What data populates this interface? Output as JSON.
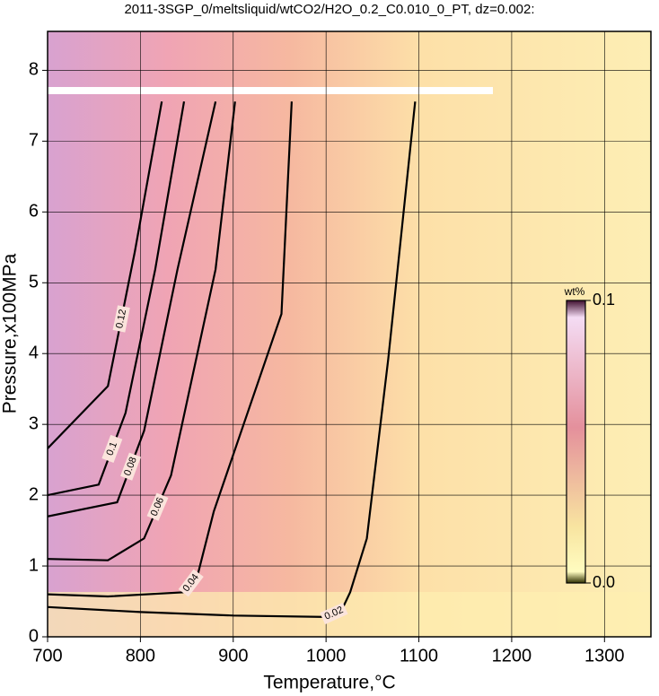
{
  "chart_data": {
    "type": "contour",
    "title": "2011-3SGP_0/meltsliquid/wtCO2/H2O_0.2_C0.010_0_PT, dz=0.002:",
    "xlabel": "Temperature,°C",
    "ylabel": "Pressure,x100MPa",
    "xlim": [
      700,
      1350
    ],
    "ylim": [
      0,
      8.55
    ],
    "xticks": [
      700,
      800,
      900,
      1000,
      1100,
      1200,
      1300
    ],
    "yticks": [
      0,
      1,
      2,
      3,
      4,
      5,
      6,
      7,
      8
    ],
    "grid": true,
    "contours": [
      {
        "level": 0.02,
        "x": [
          700,
          800,
          900,
          1000,
          1017,
          1026,
          1044,
          1067,
          1096
        ],
        "y": [
          0.42,
          0.35,
          0.3,
          0.28,
          0.38,
          0.63,
          1.39,
          3.92,
          7.56
        ]
      },
      {
        "level": 0.04,
        "x": [
          700,
          765,
          847,
          862,
          879,
          952,
          963
        ],
        "y": [
          0.6,
          0.57,
          0.63,
          0.89,
          1.77,
          4.56,
          7.56
        ]
      },
      {
        "level": 0.06,
        "x": [
          700,
          765,
          804,
          833,
          881,
          902
        ],
        "y": [
          1.1,
          1.08,
          1.39,
          2.28,
          5.19,
          7.56
        ]
      },
      {
        "level": 0.08,
        "x": [
          700,
          775,
          804,
          840,
          881
        ],
        "y": [
          1.7,
          1.9,
          2.91,
          5.19,
          7.56
        ]
      },
      {
        "level": 0.1,
        "x": [
          700,
          755,
          784,
          816,
          847
        ],
        "y": [
          2.0,
          2.15,
          3.16,
          5.19,
          7.56
        ]
      },
      {
        "level": 0.12,
        "x": [
          700,
          765,
          794,
          823
        ],
        "y": [
          2.66,
          3.54,
          5.44,
          7.56
        ]
      }
    ],
    "colorbar": {
      "label": "wt%",
      "lim": [
        0,
        0.1
      ],
      "ticks": [
        {
          "value": 0,
          "label": "0.0"
        },
        0.1
      ]
    }
  }
}
